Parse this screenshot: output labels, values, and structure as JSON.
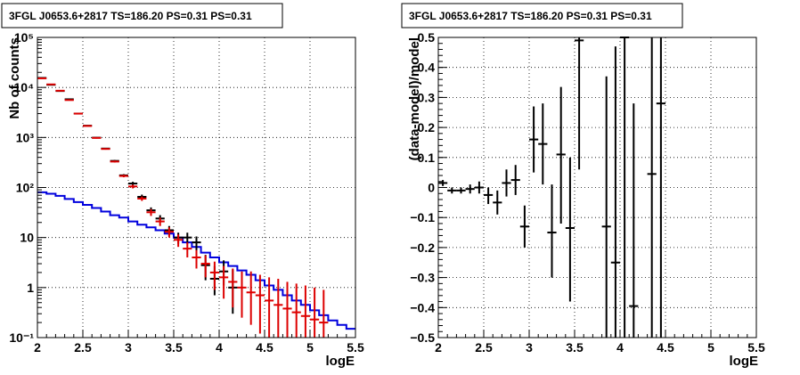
{
  "chart_data": [
    {
      "type": "scatter",
      "title": "3FGL J0653.6+2817 TS=186.20 PS=0.31 PS=0.31",
      "xlabel": "logE",
      "ylabel": "Nb of counts",
      "xlim": [
        2,
        5.5
      ],
      "ylim": [
        0.1,
        100000
      ],
      "yscale": "log",
      "grid": true,
      "xticks": [
        2,
        2.5,
        3,
        3.5,
        4,
        4.5,
        5,
        5.5
      ],
      "xtick_labels": [
        "2",
        "2.5",
        "3",
        "3.5",
        "4",
        "4.5",
        "5",
        "5.5"
      ],
      "yticks": [
        0.1,
        1,
        10,
        100,
        1000,
        10000,
        100000
      ],
      "ytick_labels": [
        "10⁻¹",
        "1",
        "10",
        "10²",
        "10³",
        "10⁴",
        "10⁵"
      ],
      "colors": {
        "data": "#000000",
        "model": "#dd0000",
        "background": "#0000dd"
      },
      "series": [
        {
          "role": "data",
          "x": [
            2.05,
            2.15,
            2.25,
            2.35,
            2.45,
            2.55,
            2.65,
            2.75,
            2.85,
            2.95,
            3.05,
            3.15,
            3.25,
            3.35,
            3.45,
            3.55,
            3.65,
            3.75,
            3.85,
            3.95,
            4.05,
            4.15
          ],
          "y": [
            15500,
            11300,
            8500,
            5800,
            3000,
            1720,
            990,
            600,
            340,
            175,
            120,
            65,
            35,
            24,
            14,
            10,
            10,
            8,
            2.8,
            1.5,
            2.1,
            1
          ],
          "lo": [
            15300,
            11100,
            8350,
            5700,
            2940,
            1680,
            960,
            580,
            325,
            165,
            110,
            58,
            30,
            20,
            11,
            7.5,
            7.5,
            5.5,
            1.4,
            0.7,
            1.1,
            0.3
          ],
          "hi": [
            15700,
            11500,
            8650,
            5900,
            3060,
            1760,
            1020,
            620,
            355,
            185,
            130,
            72,
            40,
            28,
            17,
            12.5,
            12.5,
            10.5,
            4.5,
            2.7,
            3.5,
            2.3
          ]
        },
        {
          "role": "model",
          "x": [
            2.05,
            2.15,
            2.25,
            2.35,
            2.45,
            2.55,
            2.65,
            2.75,
            2.85,
            2.95,
            3.05,
            3.15,
            3.25,
            3.35,
            3.45,
            3.55,
            3.65,
            3.75,
            3.85,
            3.95,
            4.05,
            4.15,
            4.25,
            4.35,
            4.45,
            4.55,
            4.65,
            4.75,
            4.85,
            4.95,
            5.05,
            5.15
          ],
          "y": [
            15200,
            11500,
            8600,
            5600,
            3000,
            1700,
            980,
            590,
            330,
            170,
            105,
            60,
            32,
            21,
            13,
            9,
            6,
            4,
            3,
            2,
            1.6,
            1.3,
            1,
            0.8,
            0.7,
            0.55,
            0.45,
            0.38,
            0.32,
            0.27,
            0.23,
            0.2
          ],
          "lo": [
            15000,
            11300,
            8450,
            5500,
            2950,
            1660,
            950,
            570,
            315,
            160,
            96,
            54,
            27,
            17,
            10,
            6.5,
            4,
            2.4,
            1.6,
            0.9,
            0.6,
            0.4,
            0.25,
            0.18,
            0.12,
            0.1,
            0.1,
            0.1,
            0.1,
            0.1,
            0.1,
            0.1
          ],
          "hi": [
            15400,
            11700,
            8750,
            5700,
            3050,
            1740,
            1010,
            610,
            345,
            180,
            114,
            66,
            37,
            25,
            16,
            11.5,
            8,
            5.6,
            4.4,
            3.3,
            2.7,
            2.4,
            2.1,
            2.1,
            1.8,
            1.6,
            1.5,
            1.3,
            1.2,
            1.1,
            1,
            0.9
          ]
        },
        {
          "role": "background",
          "type": "step",
          "edges": [
            2.0,
            2.1,
            2.2,
            2.3,
            2.4,
            2.5,
            2.6,
            2.7,
            2.8,
            2.9,
            3.0,
            3.1,
            3.2,
            3.3,
            3.4,
            3.5,
            3.6,
            3.7,
            3.8,
            3.9,
            4.0,
            4.1,
            4.2,
            4.3,
            4.4,
            4.5,
            4.6,
            4.7,
            4.8,
            4.9,
            5.0,
            5.1,
            5.2,
            5.3,
            5.4,
            5.5
          ],
          "values": [
            80,
            75,
            68,
            59,
            51,
            45,
            39,
            33,
            28,
            25,
            21,
            18,
            16,
            14,
            12,
            10,
            8,
            6.5,
            5,
            4,
            3.2,
            2.7,
            2.2,
            1.8,
            1.4,
            1.1,
            0.9,
            0.7,
            0.55,
            0.45,
            0.35,
            0.28,
            0.22,
            0.18,
            0.15
          ]
        }
      ]
    },
    {
      "type": "scatter",
      "title": "3FGL J0653.6+2817 TS=186.20 PS=0.31 PS=0.31",
      "xlabel": "logE",
      "ylabel": "(data-model)/model",
      "xlim": [
        2,
        5.5
      ],
      "ylim": [
        -0.5,
        0.5
      ],
      "grid": true,
      "xticks": [
        2,
        2.5,
        3,
        3.5,
        4,
        4.5,
        5,
        5.5
      ],
      "xtick_labels": [
        "2",
        "2.5",
        "3",
        "3.5",
        "4",
        "4.5",
        "5",
        "5.5"
      ],
      "yticks": [
        -0.5,
        -0.4,
        -0.3,
        -0.2,
        -0.1,
        0,
        0.1,
        0.2,
        0.3,
        0.4,
        0.5
      ],
      "ytick_labels": [
        "−0.5",
        "−0.4",
        "−0.3",
        "−0.2",
        "−0.1",
        "0",
        "0.1",
        "0.2",
        "0.3",
        "0.4",
        "0.5"
      ],
      "colors": {
        "data": "#000000"
      },
      "series": [
        {
          "role": "residuals",
          "x": [
            2.05,
            2.15,
            2.25,
            2.35,
            2.45,
            2.55,
            2.65,
            2.75,
            2.85,
            2.95,
            3.05,
            3.15,
            3.25,
            3.35,
            3.45,
            3.55,
            3.85,
            3.95,
            4.05,
            4.15,
            4.35,
            4.45
          ],
          "y": [
            0.015,
            -0.01,
            -0.01,
            -0.005,
            0.0,
            -0.025,
            -0.05,
            0.015,
            0.025,
            -0.13,
            0.16,
            0.145,
            -0.15,
            0.11,
            -0.135,
            0.49,
            -0.13,
            -0.25,
            0.5,
            -0.395,
            0.045,
            0.28
          ],
          "lo": [
            0.005,
            -0.02,
            -0.02,
            -0.02,
            -0.02,
            -0.055,
            -0.09,
            -0.03,
            -0.025,
            -0.2,
            0.05,
            0.01,
            -0.3,
            -0.12,
            -0.38,
            0.06,
            -0.5,
            -0.5,
            -0.5,
            -0.5,
            -0.5,
            -0.5
          ],
          "hi": [
            0.025,
            0.0,
            0.0,
            0.01,
            0.02,
            0.0,
            -0.01,
            0.06,
            0.075,
            -0.06,
            0.27,
            0.28,
            0.01,
            0.335,
            0.1,
            0.5,
            0.37,
            0.47,
            0.5,
            0.28,
            0.5,
            0.5
          ]
        }
      ]
    }
  ]
}
